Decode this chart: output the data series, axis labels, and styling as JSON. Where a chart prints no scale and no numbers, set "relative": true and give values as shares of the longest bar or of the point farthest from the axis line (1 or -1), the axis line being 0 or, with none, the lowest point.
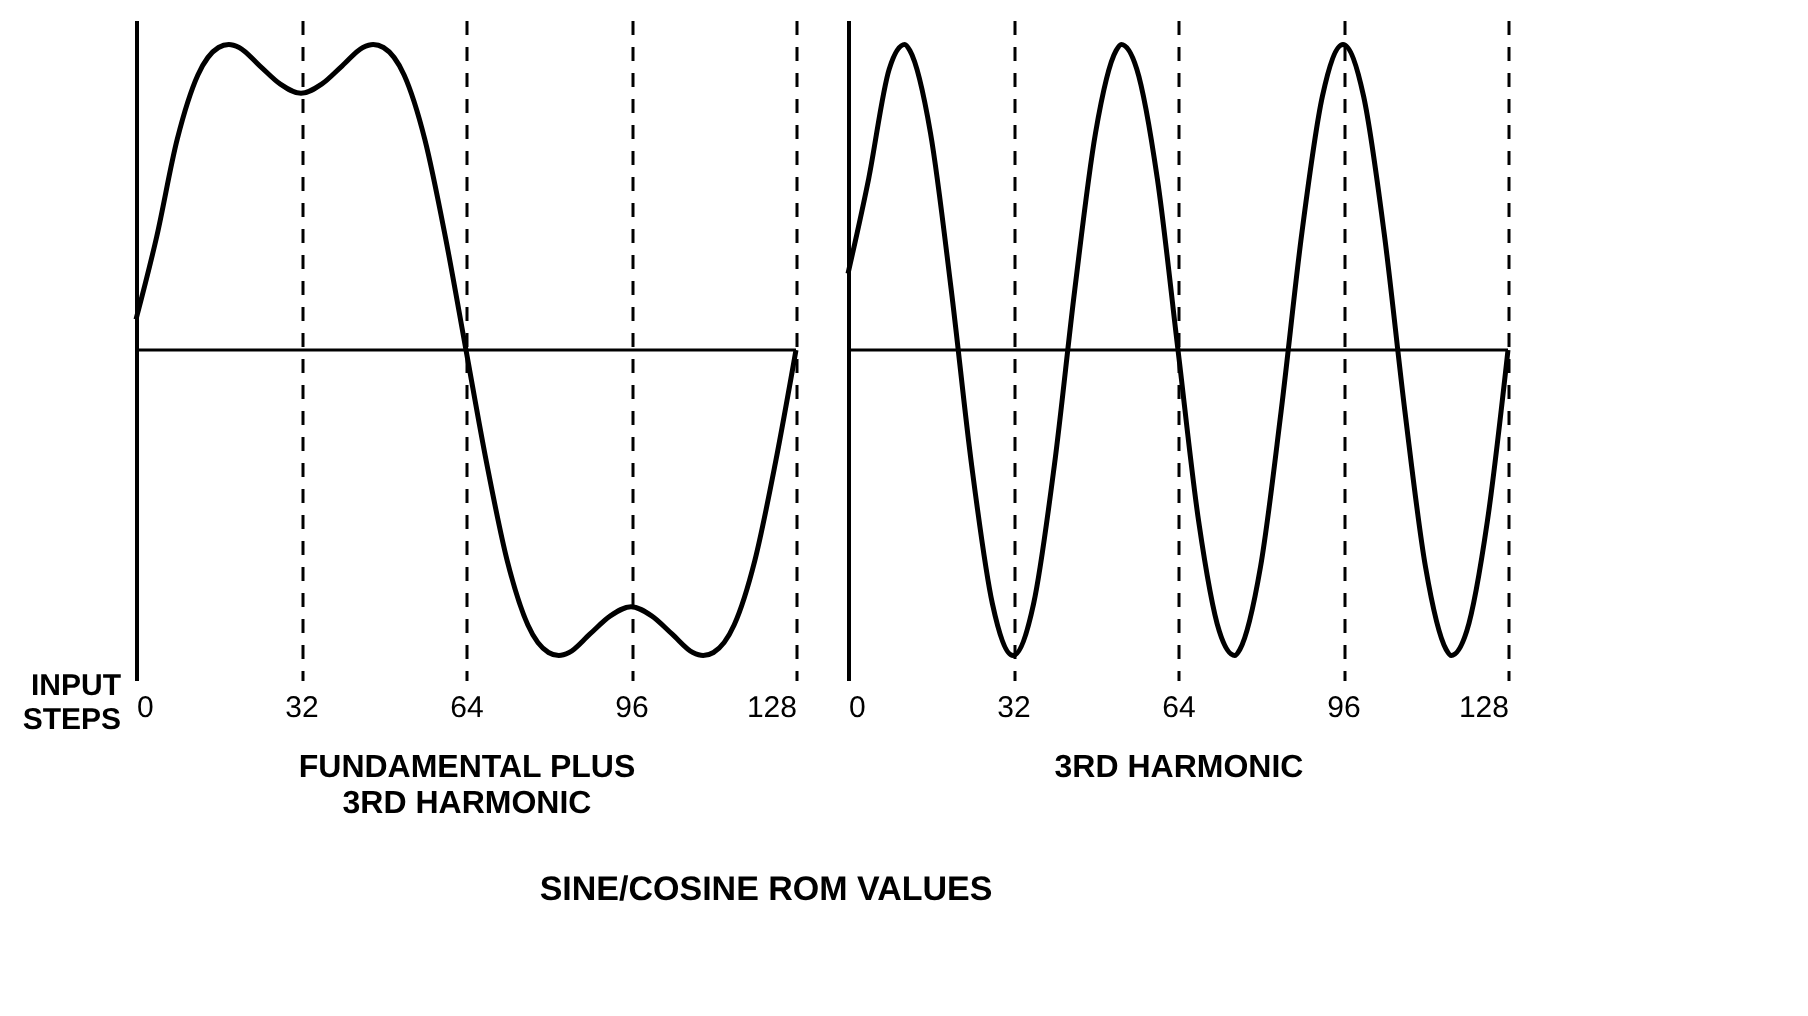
{
  "chart_data": [
    {
      "type": "line",
      "relative": true,
      "xlabel": "FUNDAMENTAL PLUS\n3RD HARMONIC",
      "ylabel": "INPUT STEPS",
      "xlim": [
        0,
        128
      ],
      "xticks": [
        0,
        32,
        64,
        96,
        128
      ],
      "grid": "x",
      "tick_labels": "x",
      "color": "#000000",
      "annotations": [
        "SINE/COSINE ROM VALUES"
      ],
      "x": [
        0,
        4,
        8,
        12,
        16,
        18,
        20,
        24,
        28,
        32,
        36,
        40,
        44,
        46,
        48,
        52,
        56,
        60,
        64,
        68,
        72,
        76,
        80,
        82,
        84,
        88,
        92,
        96,
        100,
        104,
        108,
        110,
        112,
        116,
        120,
        124,
        128
      ],
      "values": [
        0.1,
        0.37,
        0.69,
        0.9,
        0.99,
        1,
        0.99,
        0.93,
        0.87,
        0.84,
        0.87,
        0.93,
        0.99,
        1,
        0.99,
        0.9,
        0.69,
        0.37,
        0,
        -0.37,
        -0.69,
        -0.9,
        -0.99,
        -1,
        -0.99,
        -0.93,
        -0.87,
        -0.84,
        -0.87,
        -0.93,
        -0.99,
        -1,
        -0.99,
        -0.9,
        -0.69,
        -0.37,
        0
      ]
    },
    {
      "type": "line",
      "relative": true,
      "xlabel": "3RD HARMONIC",
      "xlim": [
        0,
        128
      ],
      "xticks": [
        0,
        32,
        64,
        96,
        128
      ],
      "grid": "x",
      "tick_labels": "x",
      "color": "#000000",
      "x": [
        0,
        4,
        8,
        11,
        12,
        16,
        20,
        24,
        28,
        32,
        36,
        40,
        44,
        48,
        52,
        53,
        56,
        60,
        64,
        68,
        72,
        75,
        76,
        80,
        84,
        88,
        92,
        96,
        100,
        104,
        108,
        112,
        116,
        117,
        120,
        124,
        128
      ],
      "values": [
        0.25,
        0.56,
        0.92,
        1,
        0.98,
        0.71,
        0.2,
        -0.38,
        -0.83,
        -1,
        -0.83,
        -0.38,
        0.2,
        0.71,
        0.98,
        1,
        0.92,
        0.56,
        0,
        -0.56,
        -0.92,
        -1,
        -0.98,
        -0.71,
        -0.2,
        0.38,
        0.83,
        1,
        0.83,
        0.38,
        -0.2,
        -0.71,
        -0.98,
        -1,
        -0.92,
        -0.56,
        0
      ]
    }
  ]
}
